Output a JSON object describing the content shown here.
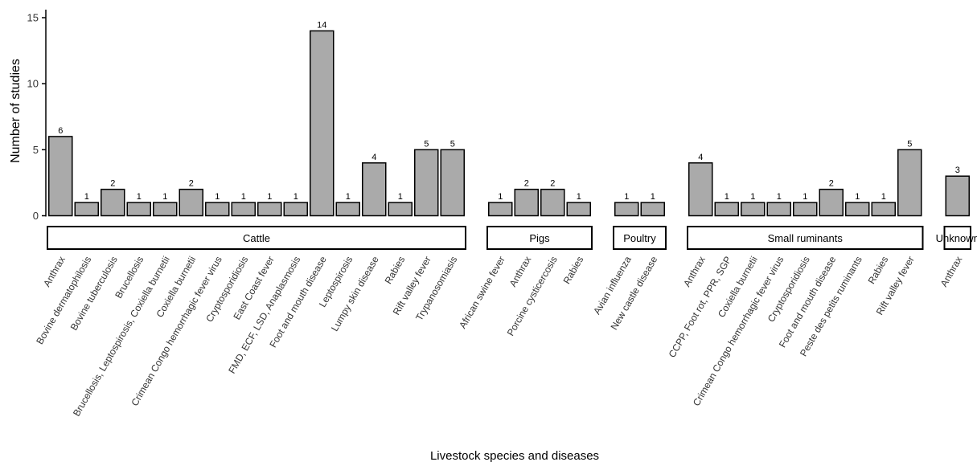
{
  "chart_data": {
    "type": "bar",
    "ylabel": "Number of studies",
    "xlabel": "Livestock species and diseases",
    "ylim": [
      0,
      15
    ],
    "yticks": [
      0,
      5,
      10,
      15
    ],
    "grid": false,
    "bar_color": "#aaaaaa",
    "facets": [
      {
        "name": "Cattle",
        "categories": [
          "Anthrax",
          "Bovine dermatophilosis",
          "Bovine tuberculosis",
          "Brucellosis",
          "Brucellosis, Leptospirosis, Coxiella burnetii",
          "Coxiella burnetii",
          "Crimean Congo hemorrhagic fever virus",
          "Cryptosporidiosis",
          "East Coast fever",
          "FMD, ECF, LSD, Anaplasmosis",
          "Foot and mouth disease",
          "Leptospirosis",
          "Lumpy skin disease",
          "Rabies",
          "Rift valley fever",
          "Trypanosomiasis"
        ],
        "values": [
          6,
          1,
          2,
          1,
          1,
          2,
          1,
          1,
          1,
          1,
          14,
          1,
          4,
          1,
          5,
          5
        ],
        "show_labels": [
          true,
          true,
          true,
          true,
          true,
          true,
          true,
          true,
          true,
          true,
          true,
          true,
          true,
          true,
          true,
          true
        ]
      },
      {
        "name": "Pigs",
        "categories": [
          "African swine fever",
          "Anthrax",
          "Porcine cysticercosis",
          "Rabies"
        ],
        "values": [
          1,
          2,
          2,
          1
        ],
        "show_labels": [
          true,
          true,
          true,
          true
        ]
      },
      {
        "name": "Poultry",
        "categories": [
          "Avian influenza",
          "New castle disease"
        ],
        "values": [
          1,
          1
        ],
        "show_labels": [
          true,
          true
        ]
      },
      {
        "name": "Small ruminants",
        "categories": [
          "Anthrax",
          "CCPP, Foot rot, PPR, SGP",
          "Coxiella burnetii",
          "Crimean Congo hemorrhagic fever virus",
          "Cryptosporidiosis",
          "Foot and mouth disease",
          "Peste des petits ruminants",
          "Rabies",
          "Rift valley fever"
        ],
        "values": [
          4,
          1,
          1,
          1,
          1,
          2,
          1,
          1,
          5
        ],
        "show_labels": [
          true,
          true,
          true,
          true,
          true,
          true,
          true,
          true,
          true
        ]
      },
      {
        "name": "Unknown",
        "categories": [
          "Anthrax"
        ],
        "values": [
          3
        ],
        "show_labels": [
          true
        ]
      }
    ]
  }
}
